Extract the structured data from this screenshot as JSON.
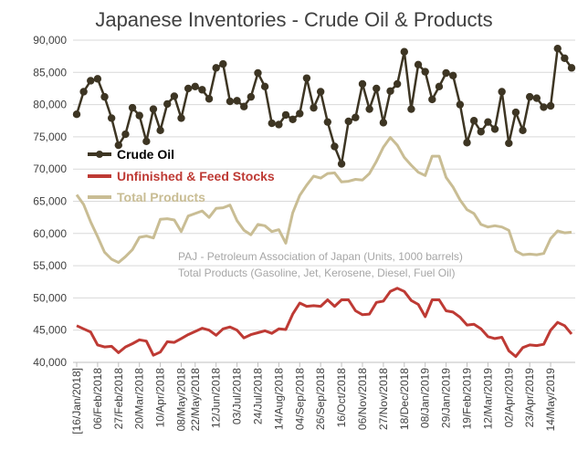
{
  "chart_data": {
    "type": "line",
    "title": "Japanese Inventories - Crude Oil & Products",
    "ylim": [
      40000,
      90000
    ],
    "yticks": [
      40000,
      45000,
      50000,
      55000,
      60000,
      65000,
      70000,
      75000,
      80000,
      85000,
      90000
    ],
    "ytick_labels": [
      "40,000",
      "45,000",
      "50,000",
      "55,000",
      "60,000",
      "65,000",
      "70,000",
      "75,000",
      "80,000",
      "85,000",
      "90,000"
    ],
    "xtick_labels": [
      "[16/Jan/2018]",
      "06/Feb/2018",
      "27/Feb/2018",
      "20/Mar/2018",
      "10/Apr/2018",
      "08/May/2018",
      "22/May/2018",
      "12/Jun/2018",
      "03/Jul/2018",
      "24/Jul/2018",
      "14/Aug/2018",
      "04/Sep/2018",
      "26/Sep/2018",
      "16/Oct/2018",
      "06/Nov/2018",
      "27/Nov/2018",
      "18/Dec/2018",
      "08/Jan/2019",
      "29/Jan/2019",
      "19/Feb/2019",
      "12/Mar/2019",
      "02/Apr/2019",
      "23/Apr/2019",
      "14/May/2019"
    ],
    "xtick_positions": [
      0,
      3,
      6,
      9,
      12,
      15,
      17,
      20,
      23,
      26,
      29,
      32,
      35,
      38,
      41,
      44,
      47,
      50,
      53,
      56,
      59,
      62,
      65,
      68
    ],
    "annotations": [
      "PAJ - Petroleum Association of Japan  (Units, 1000 barrels)",
      "Total Products (Gasoline, Jet, Kerosene,  Diesel, Fuel Oil)"
    ],
    "series": [
      {
        "name": "Crude Oil",
        "color": "#3d3523",
        "marker": "circle",
        "values": [
          78500,
          82000,
          83700,
          84000,
          81200,
          77900,
          73700,
          75400,
          79500,
          78300,
          74300,
          79300,
          76000,
          80100,
          81300,
          77900,
          82500,
          82800,
          82300,
          80900,
          85700,
          86300,
          80500,
          80600,
          79700,
          81200,
          84900,
          82800,
          77100,
          76900,
          78400,
          77700,
          78600,
          84100,
          79500,
          82000,
          77300,
          73500,
          70800,
          77400,
          78000,
          83200,
          79300,
          82500,
          77200,
          82100,
          83200,
          88200,
          79300,
          86200,
          85100,
          80800,
          82800,
          84900,
          84500,
          80000,
          74100,
          77500,
          75800,
          77300,
          76200,
          82000,
          74000,
          78800,
          76000,
          81200,
          81000,
          79600,
          79800,
          88700,
          87200,
          85700
        ]
      },
      {
        "name": "Unfinished & Feed Stocks",
        "color": "#be3a34",
        "values": [
          45700,
          45200,
          44700,
          42700,
          42400,
          42500,
          41500,
          42400,
          42900,
          43500,
          43300,
          41100,
          41600,
          43200,
          43100,
          43700,
          44300,
          44800,
          45300,
          45000,
          44200,
          45200,
          45500,
          45000,
          43800,
          44300,
          44600,
          44900,
          44500,
          45200,
          45100,
          47500,
          49200,
          48700,
          48800,
          48700,
          49700,
          48700,
          49700,
          49700,
          48000,
          47400,
          47500,
          49300,
          49500,
          51000,
          51500,
          51000,
          49600,
          49000,
          47100,
          49700,
          49700,
          48000,
          47800,
          47000,
          45800,
          45900,
          45200,
          44000,
          43700,
          43900,
          41800,
          40900,
          42300,
          42700,
          42600,
          42800,
          45000,
          46200,
          45700,
          44400
        ]
      },
      {
        "name": "Total Products",
        "color": "#c9bd94",
        "values": [
          66000,
          64500,
          61800,
          59500,
          57100,
          56000,
          55500,
          56400,
          57500,
          59400,
          59600,
          59300,
          62200,
          62300,
          62100,
          60300,
          62700,
          63100,
          63500,
          62500,
          63900,
          64000,
          64400,
          62000,
          60500,
          59800,
          61400,
          61200,
          60300,
          60600,
          58500,
          63200,
          65900,
          67500,
          68900,
          68600,
          69300,
          69400,
          68000,
          68100,
          68400,
          68300,
          69300,
          71200,
          73400,
          74900,
          73700,
          71800,
          70600,
          69500,
          69000,
          72000,
          72000,
          68700,
          67200,
          65200,
          63700,
          63100,
          61400,
          61000,
          61200,
          61000,
          60500,
          57300,
          56700,
          56800,
          56700,
          56900,
          59200,
          60400,
          60100,
          60200
        ]
      }
    ]
  }
}
